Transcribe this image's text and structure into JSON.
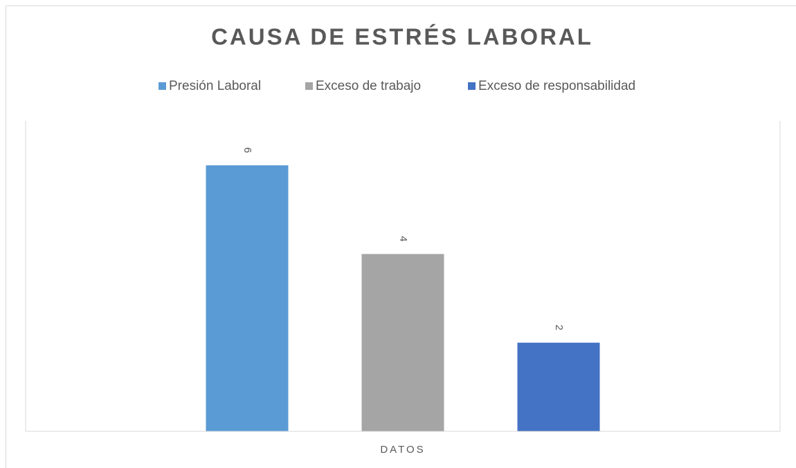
{
  "chart_data": {
    "type": "bar",
    "title": "CAUSA DE ESTRÉS LABORAL",
    "categories": [
      "DATOS"
    ],
    "series": [
      {
        "name": "Presión Laboral",
        "color": "#5b9bd5",
        "values": [
          6
        ]
      },
      {
        "name": "Exceso de trabajo",
        "color": "#a5a5a5",
        "values": [
          4
        ]
      },
      {
        "name": "Exceso de responsabilidad",
        "color": "#4472c4",
        "values": [
          2
        ]
      }
    ],
    "ylim": [
      0,
      7
    ],
    "legend": "top"
  }
}
